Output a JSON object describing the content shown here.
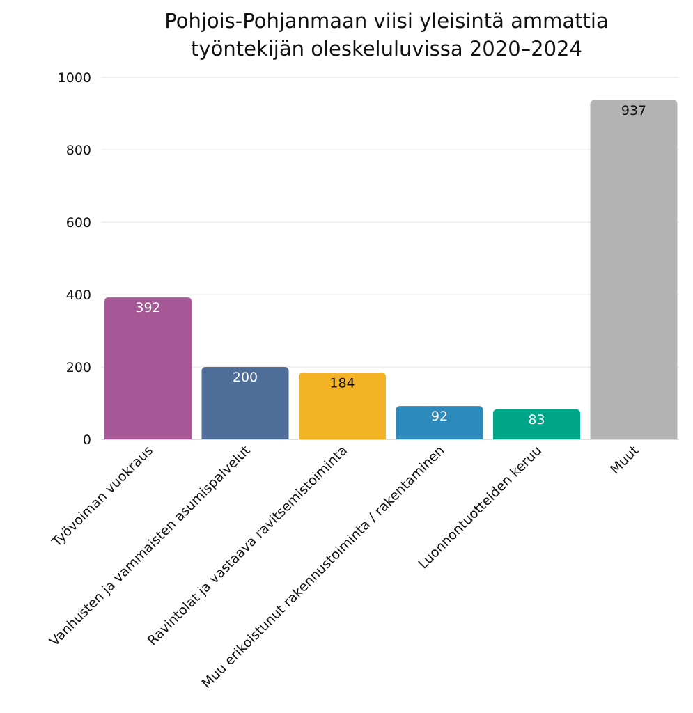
{
  "chart_data": {
    "type": "bar",
    "title": [
      "Pohjois-Pohjanmaan viisi yleisintä ammattia",
      "työntekijän oleskeluluvissa 2020–2024"
    ],
    "categories": [
      "Työvoiman vuokraus",
      "Vanhusten ja vammaisten asumispalvelut",
      "Ravintolat ja vastaava ravitsemistoiminta",
      "Muu erikoistunut rakennustoiminta / rakentaminen",
      "Luonnontuotteiden keruu",
      "Muut"
    ],
    "values": [
      392,
      200,
      184,
      92,
      83,
      937
    ],
    "colors": [
      "#A65796",
      "#4E6D98",
      "#F4B324",
      "#2E8ABC",
      "#00A68A",
      "#B3B3B3"
    ],
    "label_colors": [
      "#FFFFFF",
      "#FFFFFF",
      "#111111",
      "#FFFFFF",
      "#FFFFFF",
      "#111111"
    ],
    "ylim": [
      0,
      1000
    ],
    "yticks": [
      0,
      200,
      400,
      600,
      800,
      1000
    ],
    "grid": true,
    "xlabel": "",
    "ylabel": ""
  }
}
